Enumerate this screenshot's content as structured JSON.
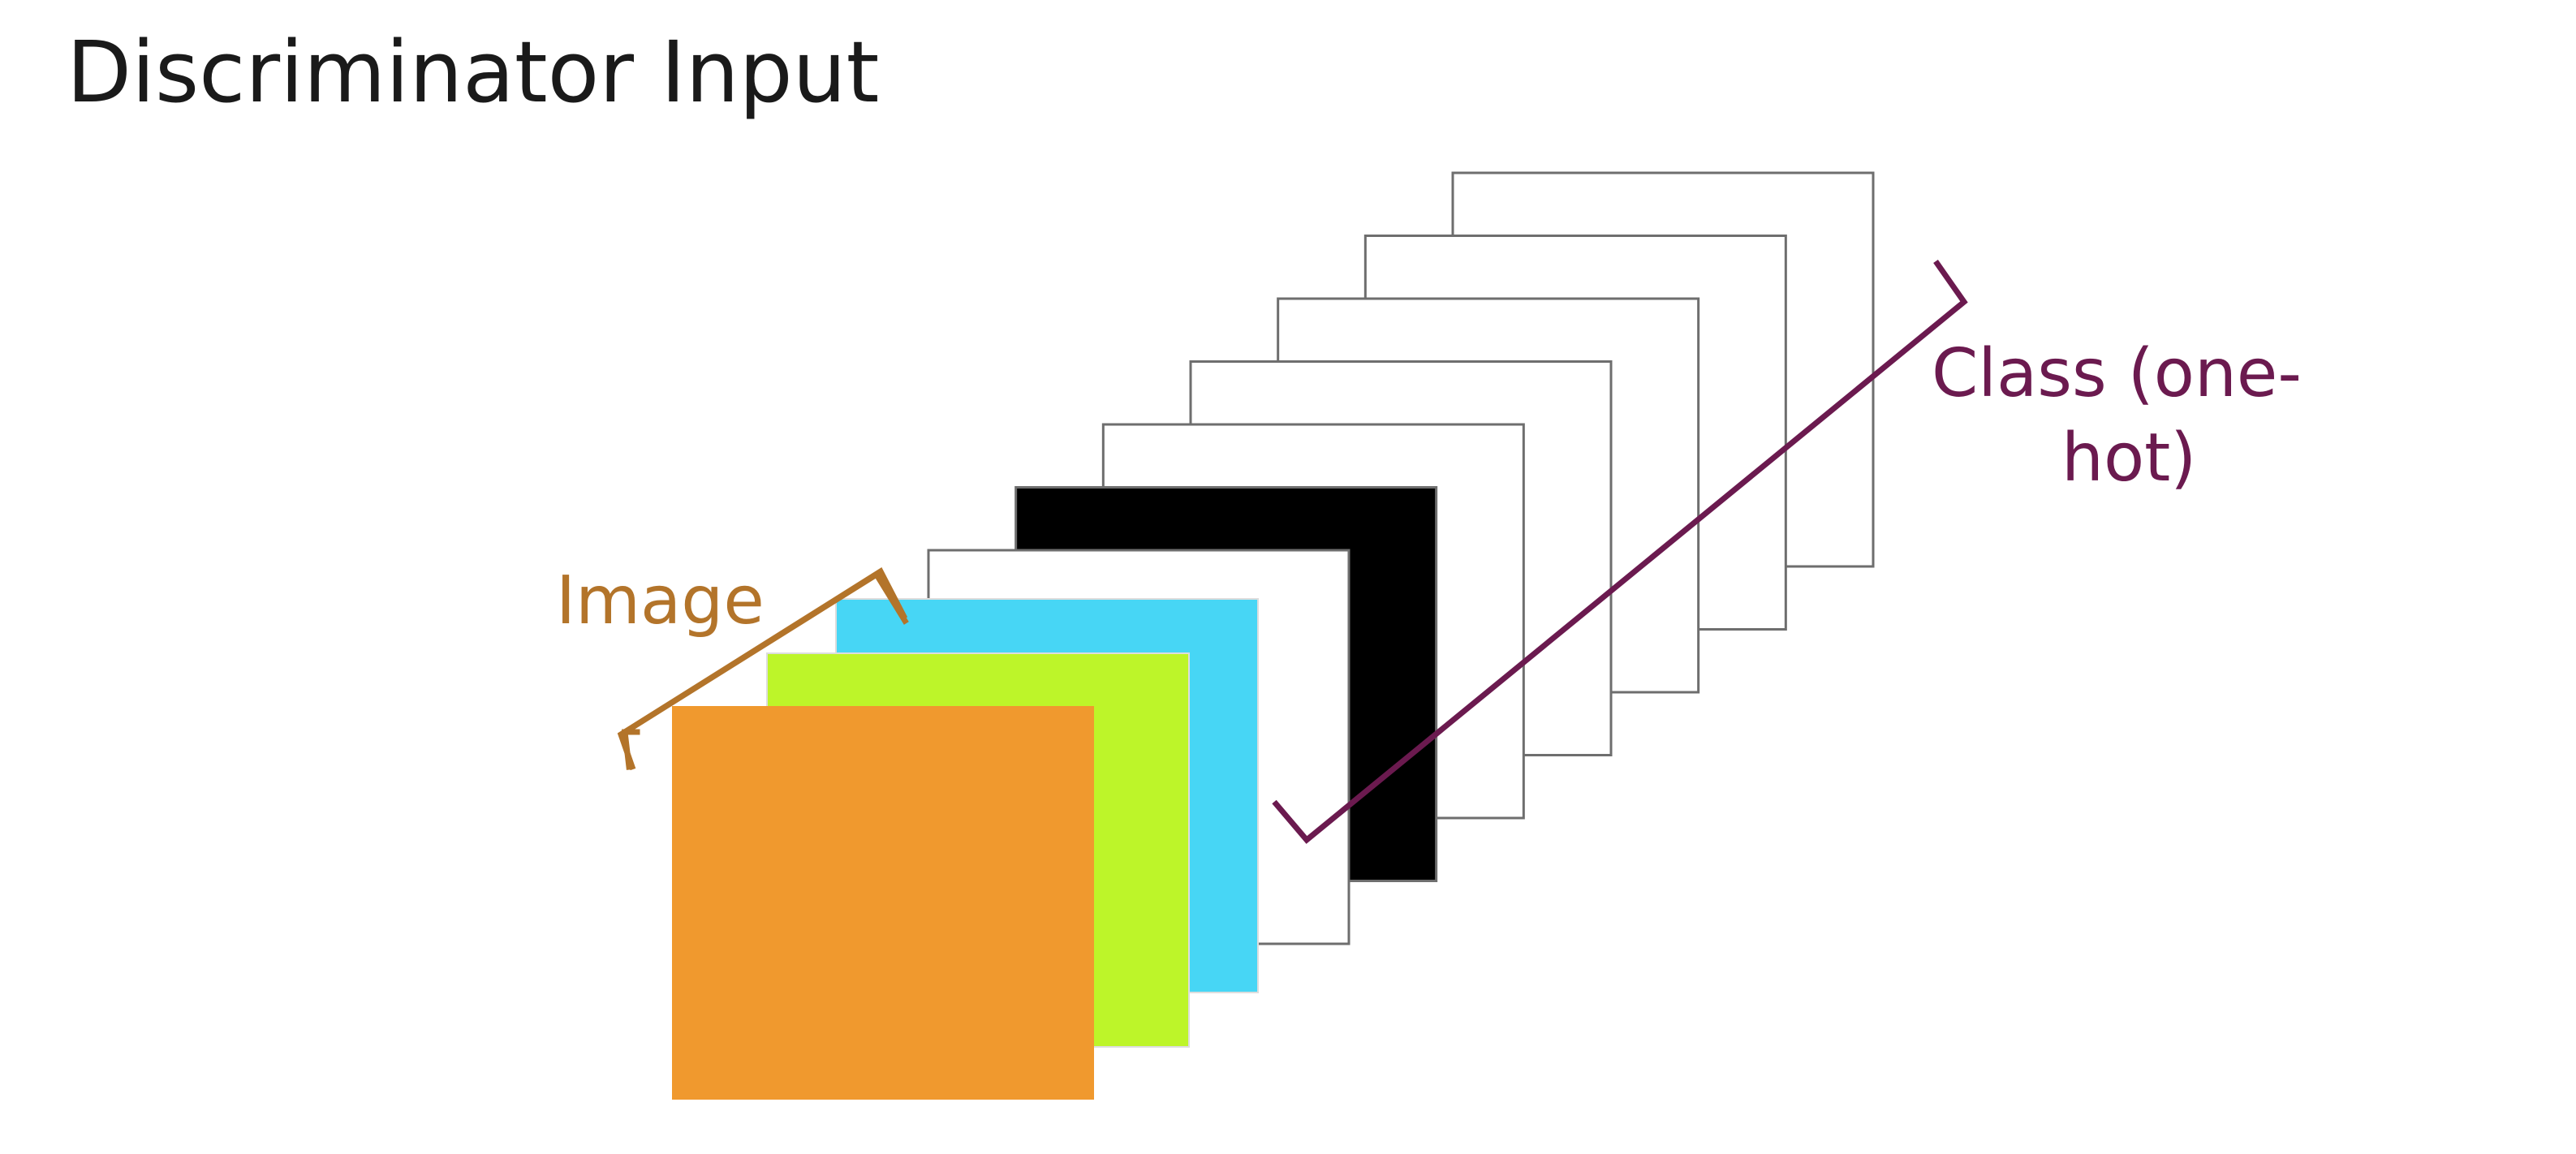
{
  "title": "Discriminator Input",
  "labels": {
    "image": "Image",
    "class_line1": "Class (one-",
    "class_line2": "hot)"
  },
  "colors": {
    "image_bracket": "#b3742a",
    "class_bracket": "#6b1a4f",
    "red_channel_tint": "#c47f1e",
    "green_channel_tint": "#a8d81c",
    "blue_channel_tint": "#3ec6d8",
    "active_class_channel": "#000000",
    "inactive_class_channel": "#ffffff"
  },
  "one_hot_channels": [
    0,
    1,
    0,
    0,
    0,
    0,
    0
  ]
}
